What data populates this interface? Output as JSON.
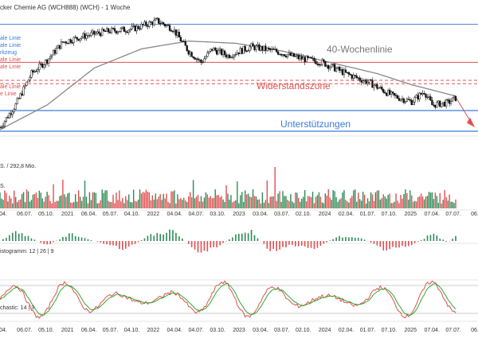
{
  "title": "cker Chemie AG (WCH888) (WCH) - 1 Woche",
  "colors": {
    "up": "#2e8b57",
    "down": "#e05050",
    "price": "#111111",
    "ma": "#888888",
    "support": "#3a7bd5",
    "resistance": "#e05050",
    "stoch_fast": "#e05050",
    "stoch_slow": "#2faa2f"
  },
  "legend": {
    "items": [
      {
        "label": "ale Linie",
        "color": "#3a7bd5"
      },
      {
        "label": "ale Linie",
        "color": "#3a7bd5"
      },
      {
        "label": "rkzeug",
        "color": "#3a7bd5"
      },
      {
        "label": "ale Linie",
        "color": "#e05050"
      },
      {
        "label": "ale Linie",
        "color": "#e05050"
      }
    ],
    "items_lower": [
      {
        "label": "ale Linie",
        "color": "#e05050"
      },
      {
        "label": "e Linie",
        "color": "#e05050"
      }
    ]
  },
  "annotations": {
    "ma_label": "40-Wochenlinie",
    "resistance_label": "Widerstandszone",
    "support_label": "Unterstützungen"
  },
  "volume_label": "S. / 292,8 Mio.",
  "volume_label2": "S.",
  "macd_label": "istogramm: 12 | 26 | 9",
  "stoch_label": "chastic: 14 | 3",
  "x_ticks": [
    "04.",
    "06.07.",
    "05.10.",
    "2021",
    "06.04.",
    "05.07.",
    "04.10.",
    "2022",
    "04.04.",
    "04.07.",
    "03.10.",
    "2023",
    "03.04.",
    "03.07.",
    "02.10.",
    "2024",
    "02.04.",
    "01.07.",
    "07.10.",
    "2025",
    "07.04.",
    "07.07.",
    "06."
  ],
  "chart_data": {
    "type": "candlestick",
    "title": "cker Chemie AG (WCH888) (WCH) - 1 Woche",
    "x_start_label": "04.",
    "price_anchors": [
      {
        "w": 0,
        "p": 0.02
      },
      {
        "w": 10,
        "p": 0.22
      },
      {
        "w": 20,
        "p": 0.5
      },
      {
        "w": 30,
        "p": 0.62
      },
      {
        "w": 40,
        "p": 0.78
      },
      {
        "w": 55,
        "p": 0.84
      },
      {
        "w": 70,
        "p": 0.88
      },
      {
        "w": 85,
        "p": 0.9
      },
      {
        "w": 100,
        "p": 0.97
      },
      {
        "w": 110,
        "p": 0.9
      },
      {
        "w": 120,
        "p": 0.7
      },
      {
        "w": 128,
        "p": 0.6
      },
      {
        "w": 135,
        "p": 0.72
      },
      {
        "w": 145,
        "p": 0.66
      },
      {
        "w": 160,
        "p": 0.74
      },
      {
        "w": 175,
        "p": 0.7
      },
      {
        "w": 190,
        "p": 0.64
      },
      {
        "w": 205,
        "p": 0.6
      },
      {
        "w": 220,
        "p": 0.5
      },
      {
        "w": 235,
        "p": 0.42
      },
      {
        "w": 250,
        "p": 0.3
      },
      {
        "w": 262,
        "p": 0.25
      },
      {
        "w": 270,
        "p": 0.34
      },
      {
        "w": 275,
        "p": 0.22
      },
      {
        "w": 285,
        "p": 0.24
      },
      {
        "w": 290,
        "p": 0.28
      }
    ],
    "ma40_anchors": [
      {
        "w": 0,
        "p": 0.0
      },
      {
        "w": 30,
        "p": 0.22
      },
      {
        "w": 60,
        "p": 0.55
      },
      {
        "w": 90,
        "p": 0.72
      },
      {
        "w": 120,
        "p": 0.79
      },
      {
        "w": 150,
        "p": 0.77
      },
      {
        "w": 180,
        "p": 0.7
      },
      {
        "w": 210,
        "p": 0.6
      },
      {
        "w": 240,
        "p": 0.5
      },
      {
        "w": 262,
        "p": 0.4
      },
      {
        "w": 290,
        "p": 0.3
      }
    ],
    "resistance_levels": [
      0.6,
      0.44,
      0.41
    ],
    "support_levels": [
      0.17,
      0.0
    ]
  }
}
